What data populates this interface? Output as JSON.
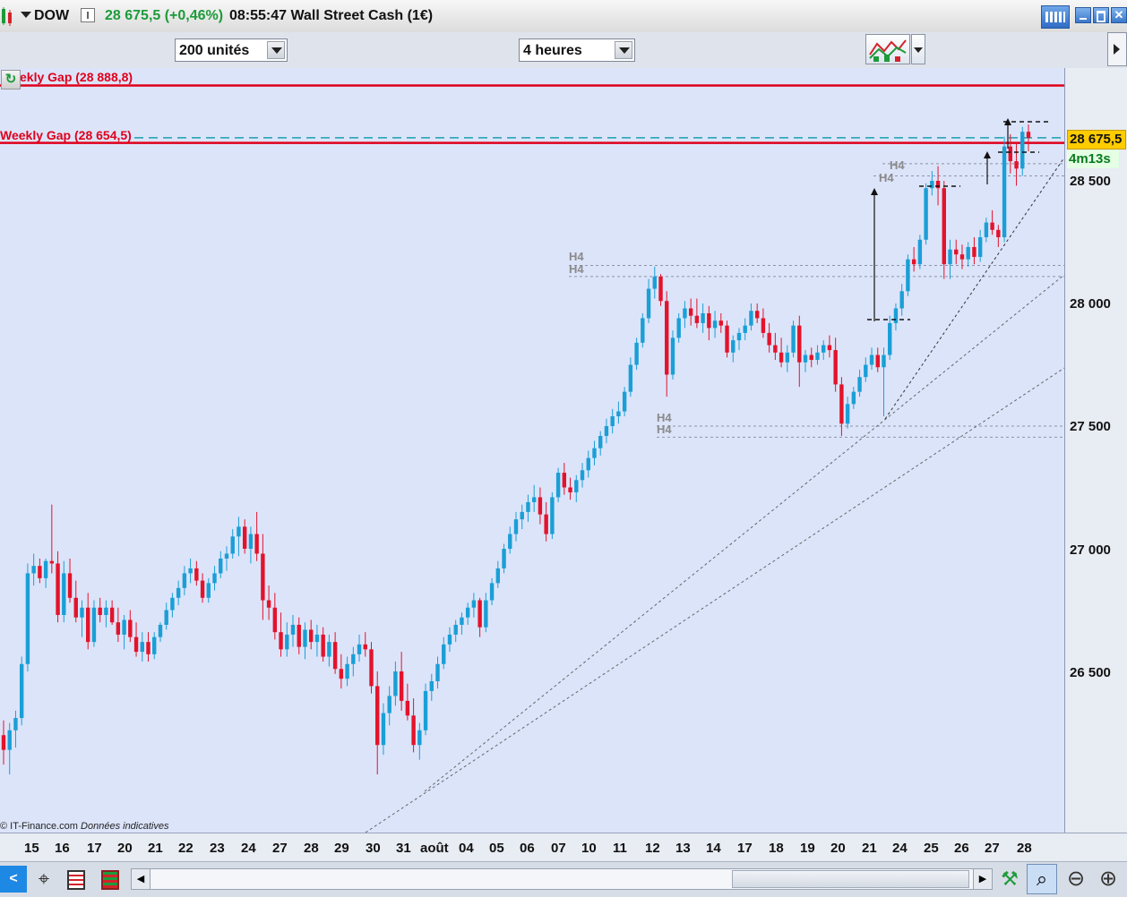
{
  "header": {
    "symbol": "DOW",
    "price_change": "28 675,5 (+0,46%)",
    "time_name": "08:55:47 Wall Street Cash (1€)"
  },
  "toolbar": {
    "units_value": "200 unités",
    "period_value": "4 heures"
  },
  "chart": {
    "gap_upper_label": "ekly Gap (28 888,8)",
    "gap_lower_label": "Weekly Gap (28 654,5)",
    "price_tag": "28 675,5",
    "timer": "4m13s",
    "credit": "© IT-Finance.com",
    "credit_note": "Données indicatives",
    "h4_label": "H4",
    "y_labels": [
      "28 500",
      "28 000",
      "27 500",
      "27 000",
      "26 500"
    ],
    "x_labels": [
      "15",
      "16",
      "17",
      "20",
      "21",
      "22",
      "23",
      "24",
      "27",
      "28",
      "29",
      "30",
      "31",
      "août",
      "04",
      "05",
      "06",
      "07",
      "10",
      "11",
      "12",
      "13",
      "14",
      "17",
      "18",
      "19",
      "20",
      "21",
      "24",
      "25",
      "26",
      "27",
      "28"
    ],
    "colors": {
      "bull": "#1a9fd6",
      "bear": "#e3132b",
      "bg": "#dce4fa",
      "gap": "#e0001b",
      "last_price": "#ffcc00",
      "dashed_gap": "#1a9fb0"
    }
  },
  "icons": {
    "top_left": "candlestick-chart-icon",
    "keyboard": "keyboard-icon",
    "window_controls": [
      "minimize-icon",
      "maximize-icon",
      "close-icon"
    ],
    "bottom_left": [
      "share-icon",
      "crosshair-icon",
      "list-icon",
      "indicator-icon"
    ],
    "bottom_right": [
      "trend-tools-icon",
      "zoom-fit-icon",
      "zoom-out-icon",
      "zoom-in-icon"
    ]
  },
  "chart_data": {
    "type": "candlestick",
    "title": "DOW 4 heures",
    "ylim": [
      25900,
      28950
    ],
    "y_ticks": [
      26500,
      27000,
      27500,
      28000,
      28500
    ],
    "horizontal_levels": [
      {
        "name": "Weekly Gap",
        "value": 28888.8,
        "style": "solid"
      },
      {
        "name": "Weekly Gap",
        "value": 28654.5,
        "style": "solid"
      },
      {
        "name": "last price",
        "value": 28675.5,
        "style": "dashed"
      }
    ],
    "h4_levels": [
      28570,
      28520,
      28155,
      28110,
      27500,
      27455
    ],
    "candles": [
      {
        "o": 26240,
        "h": 26300,
        "l": 26120,
        "c": 26180
      },
      {
        "o": 26180,
        "h": 26290,
        "l": 26080,
        "c": 26260
      },
      {
        "o": 26260,
        "h": 26340,
        "l": 26190,
        "c": 26310
      },
      {
        "o": 26310,
        "h": 26560,
        "l": 26280,
        "c": 26530
      },
      {
        "o": 26530,
        "h": 26940,
        "l": 26500,
        "c": 26900
      },
      {
        "o": 26900,
        "h": 26980,
        "l": 26850,
        "c": 26930
      },
      {
        "o": 26930,
        "h": 26960,
        "l": 26860,
        "c": 26880
      },
      {
        "o": 26880,
        "h": 26960,
        "l": 26840,
        "c": 26950
      },
      {
        "o": 26950,
        "h": 27180,
        "l": 26900,
        "c": 26940
      },
      {
        "o": 26940,
        "h": 26990,
        "l": 26700,
        "c": 26730
      },
      {
        "o": 26730,
        "h": 26950,
        "l": 26700,
        "c": 26900
      },
      {
        "o": 26900,
        "h": 26960,
        "l": 26780,
        "c": 26800
      },
      {
        "o": 26800,
        "h": 26870,
        "l": 26700,
        "c": 26720
      },
      {
        "o": 26720,
        "h": 26790,
        "l": 26640,
        "c": 26760
      },
      {
        "o": 26760,
        "h": 26820,
        "l": 26590,
        "c": 26620
      },
      {
        "o": 26620,
        "h": 26790,
        "l": 26600,
        "c": 26760
      },
      {
        "o": 26760,
        "h": 26800,
        "l": 26700,
        "c": 26730
      },
      {
        "o": 26730,
        "h": 26790,
        "l": 26680,
        "c": 26760
      },
      {
        "o": 26760,
        "h": 26790,
        "l": 26690,
        "c": 26700
      },
      {
        "o": 26700,
        "h": 26760,
        "l": 26620,
        "c": 26650
      },
      {
        "o": 26650,
        "h": 26730,
        "l": 26590,
        "c": 26710
      },
      {
        "o": 26710,
        "h": 26750,
        "l": 26620,
        "c": 26640
      },
      {
        "o": 26640,
        "h": 26700,
        "l": 26560,
        "c": 26580
      },
      {
        "o": 26580,
        "h": 26660,
        "l": 26540,
        "c": 26620
      },
      {
        "o": 26620,
        "h": 26660,
        "l": 26540,
        "c": 26570
      },
      {
        "o": 26570,
        "h": 26660,
        "l": 26550,
        "c": 26640
      },
      {
        "o": 26640,
        "h": 26700,
        "l": 26620,
        "c": 26690
      },
      {
        "o": 26690,
        "h": 26780,
        "l": 26670,
        "c": 26750
      },
      {
        "o": 26750,
        "h": 26820,
        "l": 26720,
        "c": 26800
      },
      {
        "o": 26800,
        "h": 26870,
        "l": 26770,
        "c": 26840
      },
      {
        "o": 26840,
        "h": 26930,
        "l": 26810,
        "c": 26900
      },
      {
        "o": 26900,
        "h": 26960,
        "l": 26860,
        "c": 26920
      },
      {
        "o": 26920,
        "h": 26950,
        "l": 26850,
        "c": 26870
      },
      {
        "o": 26870,
        "h": 26900,
        "l": 26780,
        "c": 26800
      },
      {
        "o": 26800,
        "h": 26880,
        "l": 26780,
        "c": 26860
      },
      {
        "o": 26860,
        "h": 26930,
        "l": 26830,
        "c": 26900
      },
      {
        "o": 26900,
        "h": 26990,
        "l": 26880,
        "c": 26960
      },
      {
        "o": 26960,
        "h": 27010,
        "l": 26910,
        "c": 26980
      },
      {
        "o": 26980,
        "h": 27080,
        "l": 26960,
        "c": 27050
      },
      {
        "o": 27050,
        "h": 27130,
        "l": 26970,
        "c": 27090
      },
      {
        "o": 27090,
        "h": 27120,
        "l": 26980,
        "c": 27000
      },
      {
        "o": 27000,
        "h": 27090,
        "l": 26940,
        "c": 27060
      },
      {
        "o": 27060,
        "h": 27150,
        "l": 26950,
        "c": 26980
      },
      {
        "o": 26980,
        "h": 27060,
        "l": 26710,
        "c": 26790
      },
      {
        "o": 26790,
        "h": 26850,
        "l": 26710,
        "c": 26760
      },
      {
        "o": 26760,
        "h": 26820,
        "l": 26630,
        "c": 26660
      },
      {
        "o": 26660,
        "h": 26740,
        "l": 26560,
        "c": 26590
      },
      {
        "o": 26590,
        "h": 26700,
        "l": 26560,
        "c": 26650
      },
      {
        "o": 26650,
        "h": 26730,
        "l": 26600,
        "c": 26690
      },
      {
        "o": 26690,
        "h": 26720,
        "l": 26570,
        "c": 26600
      },
      {
        "o": 26600,
        "h": 26700,
        "l": 26550,
        "c": 26670
      },
      {
        "o": 26670,
        "h": 26710,
        "l": 26590,
        "c": 26620
      },
      {
        "o": 26620,
        "h": 26690,
        "l": 26560,
        "c": 26650
      },
      {
        "o": 26650,
        "h": 26680,
        "l": 26540,
        "c": 26560
      },
      {
        "o": 26560,
        "h": 26650,
        "l": 26520,
        "c": 26620
      },
      {
        "o": 26620,
        "h": 26660,
        "l": 26490,
        "c": 26510
      },
      {
        "o": 26510,
        "h": 26570,
        "l": 26430,
        "c": 26470
      },
      {
        "o": 26470,
        "h": 26560,
        "l": 26440,
        "c": 26530
      },
      {
        "o": 26530,
        "h": 26600,
        "l": 26480,
        "c": 26570
      },
      {
        "o": 26570,
        "h": 26650,
        "l": 26540,
        "c": 26610
      },
      {
        "o": 26610,
        "h": 26660,
        "l": 26560,
        "c": 26590
      },
      {
        "o": 26590,
        "h": 26620,
        "l": 26410,
        "c": 26440
      },
      {
        "o": 26440,
        "h": 26500,
        "l": 26080,
        "c": 26200
      },
      {
        "o": 26200,
        "h": 26370,
        "l": 26160,
        "c": 26330
      },
      {
        "o": 26330,
        "h": 26440,
        "l": 26280,
        "c": 26400
      },
      {
        "o": 26400,
        "h": 26540,
        "l": 26360,
        "c": 26500
      },
      {
        "o": 26500,
        "h": 26580,
        "l": 26340,
        "c": 26380
      },
      {
        "o": 26380,
        "h": 26450,
        "l": 26300,
        "c": 26320
      },
      {
        "o": 26320,
        "h": 26390,
        "l": 26170,
        "c": 26200
      },
      {
        "o": 26200,
        "h": 26290,
        "l": 26140,
        "c": 26260
      },
      {
        "o": 26260,
        "h": 26450,
        "l": 26240,
        "c": 26420
      },
      {
        "o": 26420,
        "h": 26490,
        "l": 26380,
        "c": 26460
      },
      {
        "o": 26460,
        "h": 26560,
        "l": 26430,
        "c": 26530
      },
      {
        "o": 26530,
        "h": 26640,
        "l": 26510,
        "c": 26610
      },
      {
        "o": 26610,
        "h": 26680,
        "l": 26580,
        "c": 26650
      },
      {
        "o": 26650,
        "h": 26710,
        "l": 26620,
        "c": 26690
      },
      {
        "o": 26690,
        "h": 26740,
        "l": 26650,
        "c": 26720
      },
      {
        "o": 26720,
        "h": 26780,
        "l": 26690,
        "c": 26760
      },
      {
        "o": 26760,
        "h": 26820,
        "l": 26720,
        "c": 26790
      },
      {
        "o": 26790,
        "h": 26800,
        "l": 26640,
        "c": 26680
      },
      {
        "o": 26680,
        "h": 26820,
        "l": 26660,
        "c": 26790
      },
      {
        "o": 26790,
        "h": 26880,
        "l": 26770,
        "c": 26860
      },
      {
        "o": 26860,
        "h": 26950,
        "l": 26840,
        "c": 26920
      },
      {
        "o": 26920,
        "h": 27020,
        "l": 26900,
        "c": 27000
      },
      {
        "o": 27000,
        "h": 27090,
        "l": 26980,
        "c": 27060
      },
      {
        "o": 27060,
        "h": 27150,
        "l": 27030,
        "c": 27120
      },
      {
        "o": 27120,
        "h": 27180,
        "l": 27080,
        "c": 27150
      },
      {
        "o": 27150,
        "h": 27220,
        "l": 27110,
        "c": 27190
      },
      {
        "o": 27190,
        "h": 27260,
        "l": 27150,
        "c": 27210
      },
      {
        "o": 27210,
        "h": 27250,
        "l": 27100,
        "c": 27140
      },
      {
        "o": 27140,
        "h": 27190,
        "l": 27030,
        "c": 27060
      },
      {
        "o": 27060,
        "h": 27230,
        "l": 27040,
        "c": 27210
      },
      {
        "o": 27210,
        "h": 27330,
        "l": 27190,
        "c": 27310
      },
      {
        "o": 27310,
        "h": 27350,
        "l": 27220,
        "c": 27250
      },
      {
        "o": 27250,
        "h": 27290,
        "l": 27200,
        "c": 27230
      },
      {
        "o": 27230,
        "h": 27300,
        "l": 27190,
        "c": 27280
      },
      {
        "o": 27280,
        "h": 27350,
        "l": 27250,
        "c": 27320
      },
      {
        "o": 27320,
        "h": 27400,
        "l": 27290,
        "c": 27370
      },
      {
        "o": 27370,
        "h": 27440,
        "l": 27340,
        "c": 27410
      },
      {
        "o": 27410,
        "h": 27480,
        "l": 27380,
        "c": 27460
      },
      {
        "o": 27460,
        "h": 27530,
        "l": 27430,
        "c": 27500
      },
      {
        "o": 27500,
        "h": 27570,
        "l": 27470,
        "c": 27540
      },
      {
        "o": 27540,
        "h": 27600,
        "l": 27510,
        "c": 27560
      },
      {
        "o": 27560,
        "h": 27660,
        "l": 27540,
        "c": 27640
      },
      {
        "o": 27640,
        "h": 27780,
        "l": 27620,
        "c": 27750
      },
      {
        "o": 27750,
        "h": 27860,
        "l": 27730,
        "c": 27840
      },
      {
        "o": 27840,
        "h": 27960,
        "l": 27820,
        "c": 27940
      },
      {
        "o": 27940,
        "h": 28100,
        "l": 27920,
        "c": 28060
      },
      {
        "o": 28060,
        "h": 28150,
        "l": 28020,
        "c": 28110
      },
      {
        "o": 28110,
        "h": 28120,
        "l": 27990,
        "c": 28010
      },
      {
        "o": 28010,
        "h": 28050,
        "l": 27620,
        "c": 27710
      },
      {
        "o": 27710,
        "h": 27890,
        "l": 27690,
        "c": 27860
      },
      {
        "o": 27860,
        "h": 27960,
        "l": 27840,
        "c": 27940
      },
      {
        "o": 27940,
        "h": 28010,
        "l": 27900,
        "c": 27980
      },
      {
        "o": 27980,
        "h": 28020,
        "l": 27910,
        "c": 27950
      },
      {
        "o": 27950,
        "h": 28020,
        "l": 27900,
        "c": 27920
      },
      {
        "o": 27920,
        "h": 28000,
        "l": 27880,
        "c": 27960
      },
      {
        "o": 27960,
        "h": 27990,
        "l": 27850,
        "c": 27900
      },
      {
        "o": 27900,
        "h": 27970,
        "l": 27860,
        "c": 27930
      },
      {
        "o": 27930,
        "h": 27960,
        "l": 27880,
        "c": 27910
      },
      {
        "o": 27910,
        "h": 27930,
        "l": 27780,
        "c": 27800
      },
      {
        "o": 27800,
        "h": 27870,
        "l": 27760,
        "c": 27850
      },
      {
        "o": 27850,
        "h": 27900,
        "l": 27810,
        "c": 27880
      },
      {
        "o": 27880,
        "h": 27940,
        "l": 27850,
        "c": 27910
      },
      {
        "o": 27910,
        "h": 28000,
        "l": 27890,
        "c": 27970
      },
      {
        "o": 27970,
        "h": 28000,
        "l": 27920,
        "c": 27940
      },
      {
        "o": 27940,
        "h": 27980,
        "l": 27860,
        "c": 27880
      },
      {
        "o": 27880,
        "h": 27920,
        "l": 27800,
        "c": 27830
      },
      {
        "o": 27830,
        "h": 27880,
        "l": 27770,
        "c": 27800
      },
      {
        "o": 27800,
        "h": 27860,
        "l": 27740,
        "c": 27760
      },
      {
        "o": 27760,
        "h": 27830,
        "l": 27720,
        "c": 27800
      },
      {
        "o": 27800,
        "h": 27930,
        "l": 27780,
        "c": 27910
      },
      {
        "o": 27910,
        "h": 27950,
        "l": 27660,
        "c": 27760
      },
      {
        "o": 27760,
        "h": 27810,
        "l": 27720,
        "c": 27790
      },
      {
        "o": 27790,
        "h": 27820,
        "l": 27740,
        "c": 27770
      },
      {
        "o": 27770,
        "h": 27830,
        "l": 27750,
        "c": 27800
      },
      {
        "o": 27800,
        "h": 27850,
        "l": 27770,
        "c": 27830
      },
      {
        "o": 27830,
        "h": 27870,
        "l": 27780,
        "c": 27810
      },
      {
        "o": 27810,
        "h": 27860,
        "l": 27640,
        "c": 27670
      },
      {
        "o": 27670,
        "h": 27700,
        "l": 27460,
        "c": 27510
      },
      {
        "o": 27510,
        "h": 27620,
        "l": 27490,
        "c": 27590
      },
      {
        "o": 27590,
        "h": 27660,
        "l": 27570,
        "c": 27640
      },
      {
        "o": 27640,
        "h": 27730,
        "l": 27620,
        "c": 27700
      },
      {
        "o": 27700,
        "h": 27780,
        "l": 27680,
        "c": 27750
      },
      {
        "o": 27750,
        "h": 27820,
        "l": 27730,
        "c": 27790
      },
      {
        "o": 27790,
        "h": 27820,
        "l": 27720,
        "c": 27740
      },
      {
        "o": 27740,
        "h": 27820,
        "l": 27540,
        "c": 27790
      },
      {
        "o": 27790,
        "h": 27950,
        "l": 27770,
        "c": 27920
      },
      {
        "o": 27920,
        "h": 28000,
        "l": 27890,
        "c": 27980
      },
      {
        "o": 27980,
        "h": 28080,
        "l": 27950,
        "c": 28050
      },
      {
        "o": 28050,
        "h": 28200,
        "l": 28030,
        "c": 28180
      },
      {
        "o": 28180,
        "h": 28230,
        "l": 28130,
        "c": 28160
      },
      {
        "o": 28160,
        "h": 28280,
        "l": 28140,
        "c": 28260
      },
      {
        "o": 28260,
        "h": 28490,
        "l": 28240,
        "c": 28470
      },
      {
        "o": 28470,
        "h": 28540,
        "l": 28440,
        "c": 28500
      },
      {
        "o": 28500,
        "h": 28560,
        "l": 28400,
        "c": 28470
      },
      {
        "o": 28470,
        "h": 28500,
        "l": 28100,
        "c": 28160
      },
      {
        "o": 28160,
        "h": 28260,
        "l": 28100,
        "c": 28220
      },
      {
        "o": 28220,
        "h": 28260,
        "l": 28160,
        "c": 28200
      },
      {
        "o": 28200,
        "h": 28240,
        "l": 28140,
        "c": 28180
      },
      {
        "o": 28180,
        "h": 28250,
        "l": 28150,
        "c": 28230
      },
      {
        "o": 28230,
        "h": 28270,
        "l": 28160,
        "c": 28190
      },
      {
        "o": 28190,
        "h": 28300,
        "l": 28170,
        "c": 28270
      },
      {
        "o": 28270,
        "h": 28350,
        "l": 28250,
        "c": 28330
      },
      {
        "o": 28330,
        "h": 28380,
        "l": 28280,
        "c": 28300
      },
      {
        "o": 28300,
        "h": 28320,
        "l": 28230,
        "c": 28270
      },
      {
        "o": 28270,
        "h": 28680,
        "l": 28250,
        "c": 28640
      },
      {
        "o": 28640,
        "h": 28690,
        "l": 28530,
        "c": 28580
      },
      {
        "o": 28580,
        "h": 28650,
        "l": 28480,
        "c": 28550
      },
      {
        "o": 28550,
        "h": 28720,
        "l": 28520,
        "c": 28700
      },
      {
        "o": 28700,
        "h": 28730,
        "l": 28620,
        "c": 28675
      }
    ]
  }
}
